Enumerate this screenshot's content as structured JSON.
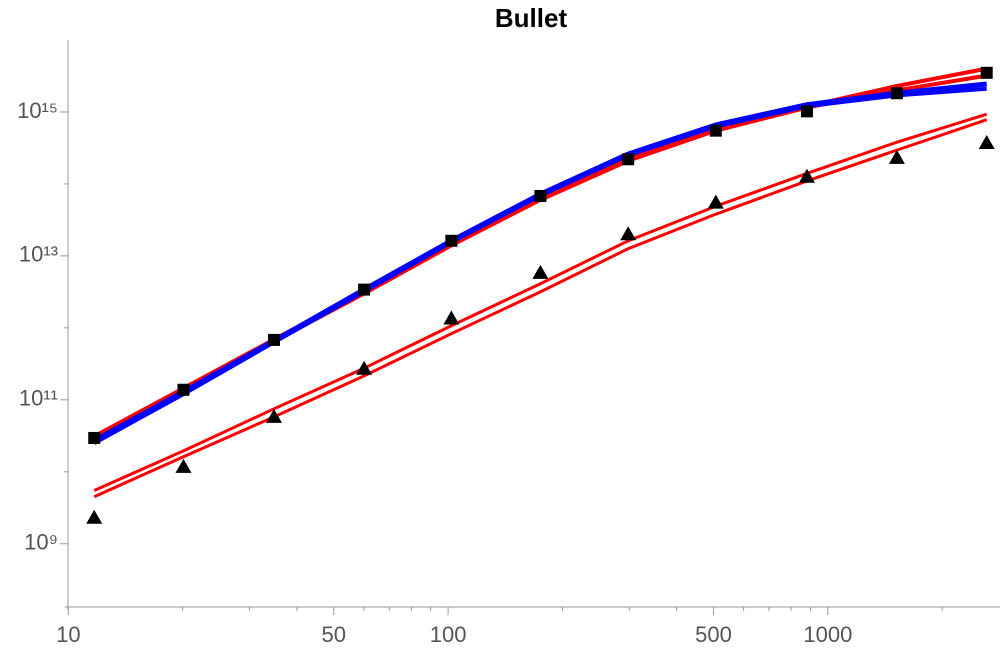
{
  "chart_data": {
    "type": "line",
    "title": "Bullet",
    "x": [
      11.7,
      20.1,
      34.8,
      60.1,
      102,
      175,
      298,
      507,
      881,
      1520,
      2620
    ],
    "log_x": true,
    "log_y": true,
    "xlim": [
      9.8,
      2840
    ],
    "ylim": [
      120000000.0,
      1e+16
    ],
    "xticks": [
      10,
      50,
      100,
      500,
      1000
    ],
    "xminorticks": [
      20,
      30,
      40,
      60,
      70,
      80,
      90,
      200,
      300,
      400,
      600,
      700,
      800,
      900,
      2000
    ],
    "yticks": [
      {
        "value": 1000000000.0,
        "label": "10⁹"
      },
      {
        "value": 100000000000.0,
        "label": "10¹¹"
      },
      {
        "value": 10000000000000.0,
        "label": "10¹³"
      },
      {
        "value": 1000000000000000.0,
        "label": "10¹⁵"
      }
    ],
    "yminorticks": [
      10000000000.0,
      1000000000000.0,
      100000000000000.0
    ],
    "series": [
      {
        "color": "#ff0000",
        "marker": "none",
        "width": 3,
        "values": [
          5500000000.0,
          19500000000.0,
          75000000000.0,
          275000000000.0,
          1070000000000.0,
          4100000000000.0,
          16200000000000.0,
          49000000000000.0,
          140000000000000.0,
          380000000000000.0,
          930000000000000.0
        ]
      },
      {
        "color": "#ff0000",
        "marker": "none",
        "width": 3,
        "values": [
          4500000000.0,
          16200000000.0,
          58000000000.0,
          215000000000.0,
          830000000000.0,
          3160000000000.0,
          12600000000000.0,
          38000000000000.0,
          110000000000000.0,
          295000000000000.0,
          780000000000000.0
        ]
      },
      {
        "color": "#ff0000",
        "marker": "none",
        "width": 4,
        "values": [
          31000000000.0,
          145000000000.0,
          690000000000.0,
          3200000000000.0,
          15000000000000.0,
          65000000000000.0,
          230000000000000.0,
          600000000000000.0,
          1200000000000000.0,
          2300000000000000.0,
          4000000000000000.0
        ]
      },
      {
        "color": "#ff0000",
        "marker": "none",
        "width": 4,
        "values": [
          29000000000.0,
          135000000000.0,
          650000000000.0,
          3000000000000.0,
          14000000000000.0,
          60000000000000.0,
          210000000000000.0,
          550000000000000.0,
          1150000000000000.0,
          2000000000000000.0,
          3200000000000000.0
        ]
      },
      {
        "color": "#0000ff",
        "marker": "none",
        "width": 5,
        "values": [
          27000000000.0,
          129000000000.0,
          660000000000.0,
          3400000000000.0,
          16200000000000.0,
          72000000000000.0,
          260000000000000.0,
          660000000000000.0,
          1260000000000000.0,
          1820000000000000.0,
          2450000000000000.0
        ]
      },
      {
        "color": "#0000ff",
        "marker": "none",
        "width": 4,
        "values": [
          25000000000.0,
          120000000000.0,
          630000000000.0,
          3200000000000.0,
          15500000000000.0,
          69000000000000.0,
          250000000000000.0,
          630000000000000.0,
          1200000000000000.0,
          1700000000000000.0,
          2100000000000000.0
        ]
      },
      {
        "color": "#000000",
        "marker": "square",
        "values": [
          29500000000.0,
          138000000000.0,
          680000000000.0,
          3400000000000.0,
          16200000000000.0,
          68000000000000.0,
          220000000000000.0,
          550000000000000.0,
          1020000000000000.0,
          1820000000000000.0,
          3500000000000000.0
        ]
      },
      {
        "color": "#000000",
        "marker": "triangle",
        "values": [
          2300000000.0,
          11700000000.0,
          58000000000.0,
          270000000000.0,
          1350000000000.0,
          5800000000000.0,
          20000000000000.0,
          55000000000000.0,
          126000000000000.0,
          230000000000000.0,
          370000000000000.0
        ]
      }
    ]
  }
}
